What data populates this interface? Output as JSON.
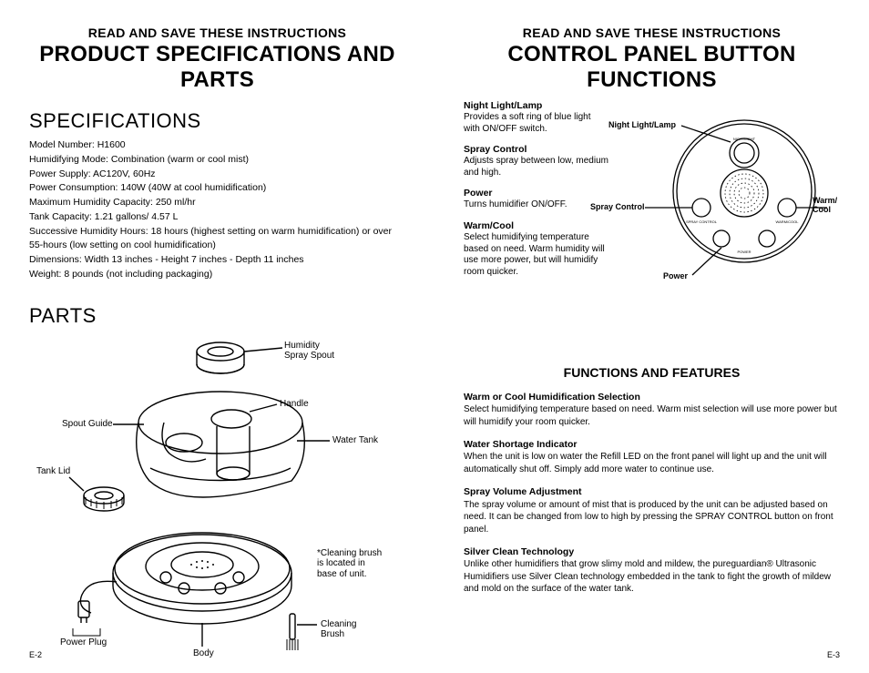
{
  "left": {
    "overline": "READ AND SAVE THESE INSTRUCTIONS",
    "title": "PRODUCT SPECIFICATIONS AND PARTS",
    "specs_title": "SPECIFICATIONS",
    "specs": [
      {
        "label": "Model Number:",
        "value": " H1600"
      },
      {
        "label": "Humidifying Mode:",
        "value": " Combination (warm or cool mist)"
      },
      {
        "label": "Power Supply:",
        "value": " AC120V, 60Hz"
      },
      {
        "label": "Power Consumption:",
        "value": " 140W (40W at cool humidification)"
      },
      {
        "label": "Maximum Humidity Capacity:",
        "value": " 250 ml/hr"
      },
      {
        "label": "Tank Capacity:",
        "value": " 1.21 gallons/ 4.57 L"
      },
      {
        "label": "Successive Humidity Hours:",
        "value": " 18 hours (highest setting on warm humidification) or over 55-hours (low setting on cool humidification)"
      },
      {
        "label": "Dimensions:",
        "value": " Width 13 inches - Height 7 inches - Depth 11 inches"
      },
      {
        "label": "Weight:",
        "value": " 8 pounds (not including packaging)"
      }
    ],
    "parts_title": "PARTS",
    "callouts": {
      "spray_spout": "Humidity\nSpray Spout",
      "handle": "Handle",
      "spout_guide": "Spout Guide",
      "water_tank": "Water Tank",
      "tank_lid": "Tank Lid",
      "power_plug": "Power Plug",
      "body": "Body",
      "cleaning_brush": "Cleaning\nBrush",
      "note": "*Cleaning brush\nis located in\nbase of unit."
    },
    "footer": "E-2"
  },
  "right": {
    "overline": "READ AND SAVE THESE INSTRUCTIONS",
    "title": "CONTROL PANEL BUTTON FUNCTIONS",
    "cp_items": [
      {
        "h": "Night Light/Lamp",
        "b": "Provides a soft ring of blue light with ON/OFF switch."
      },
      {
        "h": "Spray Control",
        "b": "Adjusts spray between low, medium and high."
      },
      {
        "h": "Power",
        "b": "Turns humidifier ON/OFF."
      },
      {
        "h": "Warm/Cool",
        "b": "Select humidifying temperature based on need. Warm humidity will use more power, but will humidify room quicker."
      }
    ],
    "cp_labels": {
      "night": "Night Light/Lamp",
      "spray": "Spray Control",
      "power": "Power",
      "warm": "Warm/\nCool"
    },
    "subhead": "FUNCTIONS AND FEATURES",
    "features": [
      {
        "h": "Warm or Cool Humidification Selection",
        "b": "Select humidifying temperature based on need. Warm mist selection will use more power but will humidify your room quicker."
      },
      {
        "h": "Water Shortage Indicator",
        "b": "When the unit is low on water the Refill LED on the front panel will light up and the unit will automatically shut off. Simply add more water to continue use."
      },
      {
        "h": "Spray Volume Adjustment",
        "b": "The spray volume or amount of mist that is produced by the unit can be adjusted based on need. It can be changed from low to high by pressing the SPRAY CONTROL button on front panel."
      },
      {
        "h": "Silver Clean Technology",
        "b": "Unlike other humidifiers that grow slimy mold and mildew, the pureguardian® Ultrasonic Humidifiers use Silver Clean technology embedded in the tank to fight the growth of mildew and mold on the surface of the water tank."
      }
    ],
    "footer": "E-3"
  },
  "style": {
    "stroke": "#000000",
    "hatch": "#000000"
  }
}
